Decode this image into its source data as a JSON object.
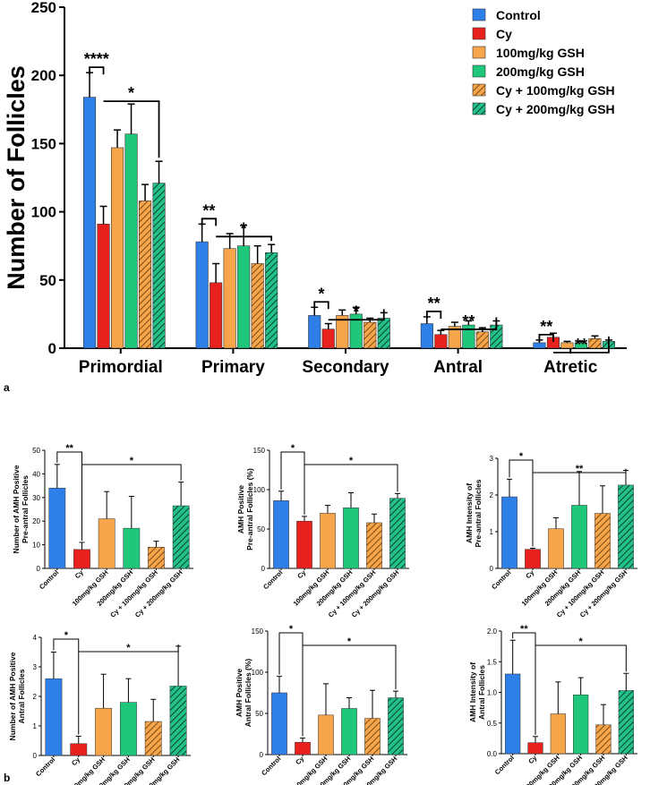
{
  "colors": {
    "control": "#2f7fe8",
    "cy": "#e8211f",
    "gsh100": "#f7a54a",
    "gsh200": "#1ec77a",
    "cy_gsh100": "#f2b36e",
    "cy_gsh200": "#22c18a",
    "error": "#000000"
  },
  "panel_labels": {
    "a": "a",
    "b": "b"
  },
  "chart_data": [
    {
      "type": "bar",
      "title": "",
      "xlabel": "",
      "ylabel": "Number of Follicles",
      "ylim": [
        0,
        250
      ],
      "yticks": [
        0,
        50,
        100,
        150,
        200,
        250
      ],
      "categories": [
        "Primordial",
        "Primary",
        "Secondary",
        "Antral",
        "Atretic"
      ],
      "legend": {
        "position": "top-right"
      },
      "series": [
        {
          "name": "Control",
          "key": "control",
          "hatched": false,
          "values": [
            184,
            78,
            24,
            18,
            4
          ],
          "errors": [
            18,
            13,
            6,
            5,
            2
          ]
        },
        {
          "name": "Cy",
          "key": "cy",
          "hatched": false,
          "values": [
            91,
            48,
            14,
            10,
            8
          ],
          "errors": [
            13,
            14,
            4,
            3,
            3
          ]
        },
        {
          "name": "100mg/kg GSH",
          "key": "gsh100",
          "hatched": false,
          "values": [
            147,
            73,
            24,
            16,
            4
          ],
          "errors": [
            13,
            11,
            4,
            3,
            1
          ]
        },
        {
          "name": "200mg/kg GSH",
          "key": "gsh200",
          "hatched": false,
          "values": [
            157,
            75,
            25,
            17,
            4
          ],
          "errors": [
            22,
            15,
            5,
            3,
            1
          ]
        },
        {
          "name": "Cy + 100mg/kg GSH",
          "key": "cy_gsh100",
          "hatched": true,
          "values": [
            108,
            62,
            19,
            12,
            7
          ],
          "errors": [
            12,
            13,
            3,
            3,
            2
          ]
        },
        {
          "name": "Cy + 200mg/kg GSH",
          "key": "cy_gsh200",
          "hatched": true,
          "values": [
            121,
            70,
            22,
            17,
            5
          ],
          "errors": [
            16,
            6,
            4,
            3,
            1
          ]
        }
      ],
      "annotations": [
        {
          "category": 0,
          "label": "****",
          "bracket1": [
            0,
            1
          ],
          "bracket2": [
            1,
            5
          ],
          "label2": "*"
        },
        {
          "category": 1,
          "label": "**",
          "bracket1": [
            0,
            1
          ],
          "bracket2": [
            1,
            5
          ],
          "label2": "*"
        },
        {
          "category": 2,
          "label": "*",
          "bracket1": [
            0,
            1
          ],
          "bracket2": [
            1,
            5
          ],
          "label2": "*"
        },
        {
          "category": 3,
          "label": "**",
          "bracket1": [
            0,
            1
          ],
          "bracket2": [
            1,
            5
          ],
          "label2": "**"
        },
        {
          "category": 4,
          "label": "**",
          "bracket1": [
            0,
            1
          ],
          "bracket2": [
            1,
            5
          ],
          "label2": "**"
        }
      ]
    },
    {
      "type": "bar",
      "ylabel": [
        "Number of AMH Positive",
        "Pre-antral Follicles"
      ],
      "ylim": [
        0,
        50
      ],
      "yticks": [
        0,
        10,
        20,
        30,
        40,
        50
      ],
      "categories": [
        "Control",
        "Cy",
        "100mg/kg GSH",
        "200mg/kg GSH",
        "Cy + 100mg/kg GSH",
        "Cy + 200mg/kg GSH"
      ],
      "values": [
        34,
        8,
        21,
        17,
        9,
        26.5
      ],
      "errors": [
        10,
        3,
        11.5,
        13.5,
        2.5,
        10
      ],
      "sig1": "**",
      "sig2": "*"
    },
    {
      "type": "bar",
      "ylabel": [
        "AMH Positive",
        "Pre-antral Follicles (%)"
      ],
      "ylim": [
        0,
        150
      ],
      "yticks": [
        0,
        50,
        100,
        150
      ],
      "categories": [
        "Control",
        "Cy",
        "100mg/kg GSH",
        "200mg/kg GSH",
        "Cy + 100mg/kg GSH",
        "Cy + 200mg/kg GSH"
      ],
      "values": [
        86,
        60,
        70,
        77,
        58,
        89
      ],
      "errors": [
        12,
        6,
        10,
        19,
        11,
        6
      ],
      "sig1": "*",
      "sig2": "*"
    },
    {
      "type": "bar",
      "ylabel": [
        "AMH Intensity of",
        "Pre-antral Follicles"
      ],
      "ylim": [
        0,
        3
      ],
      "yticks": [
        0,
        1,
        2,
        3
      ],
      "categories": [
        "Control",
        "Cy",
        "100mg/kg GSH",
        "200mg/kg GSH",
        "Cy + 100mg/kg GSH",
        "Cy + 200mg/kg GSH"
      ],
      "values": [
        1.95,
        0.52,
        1.08,
        1.72,
        1.5,
        2.27
      ],
      "errors": [
        0.48,
        0.03,
        0.3,
        0.92,
        0.75,
        0.4
      ],
      "sig1": "*",
      "sig2": "**"
    },
    {
      "type": "bar",
      "ylabel": [
        "Number of AMH Positive",
        "Antral Follicles"
      ],
      "ylim": [
        0,
        4
      ],
      "yticks": [
        0,
        1,
        2,
        3,
        4
      ],
      "categories": [
        "Control",
        "Cy",
        "100mg/kg GSH",
        "200mg/kg GSH",
        "Cy + 100mg/kg GSH",
        "Cy + 200mg/kg GSH"
      ],
      "values": [
        2.6,
        0.4,
        1.6,
        1.8,
        1.15,
        2.35
      ],
      "errors": [
        0.9,
        0.25,
        1.15,
        0.8,
        0.75,
        1.35
      ],
      "sig1": "*",
      "sig2": "*"
    },
    {
      "type": "bar",
      "ylabel": [
        "AMH Positive",
        "Antral Follicles (%)"
      ],
      "ylim": [
        0,
        150
      ],
      "yticks": [
        0,
        50,
        100,
        150
      ],
      "categories": [
        "Control",
        "Cy",
        "100mg/kg GSH",
        "200mg/kg GSH",
        "Cy + 100mg/kg GSH",
        "Cy + 200mg/kg GSH"
      ],
      "values": [
        75,
        15,
        48,
        56,
        44,
        69
      ],
      "errors": [
        20,
        5,
        38,
        13,
        34,
        8
      ],
      "sig1": "*",
      "sig2": "*"
    },
    {
      "type": "bar",
      "ylabel": [
        "AMH Intensity of",
        "Antral Follicles"
      ],
      "ylim": [
        0,
        2.0
      ],
      "yticks": [
        0.0,
        0.5,
        1.0,
        1.5,
        2.0
      ],
      "ytick_labels": [
        "0.0",
        "0.5",
        "1.0",
        "1.5",
        "2.0"
      ],
      "categories": [
        "Control",
        "Cy",
        "100mg/kg GSH",
        "200mg/kg GSH",
        "Cy + 100mg/kg GSH",
        "Cy + 200mg/kg GSH"
      ],
      "values": [
        1.3,
        0.18,
        0.65,
        0.96,
        0.47,
        1.03
      ],
      "errors": [
        0.55,
        0.1,
        0.52,
        0.28,
        0.33,
        0.28
      ],
      "sig1": "**",
      "sig2": "*"
    }
  ]
}
